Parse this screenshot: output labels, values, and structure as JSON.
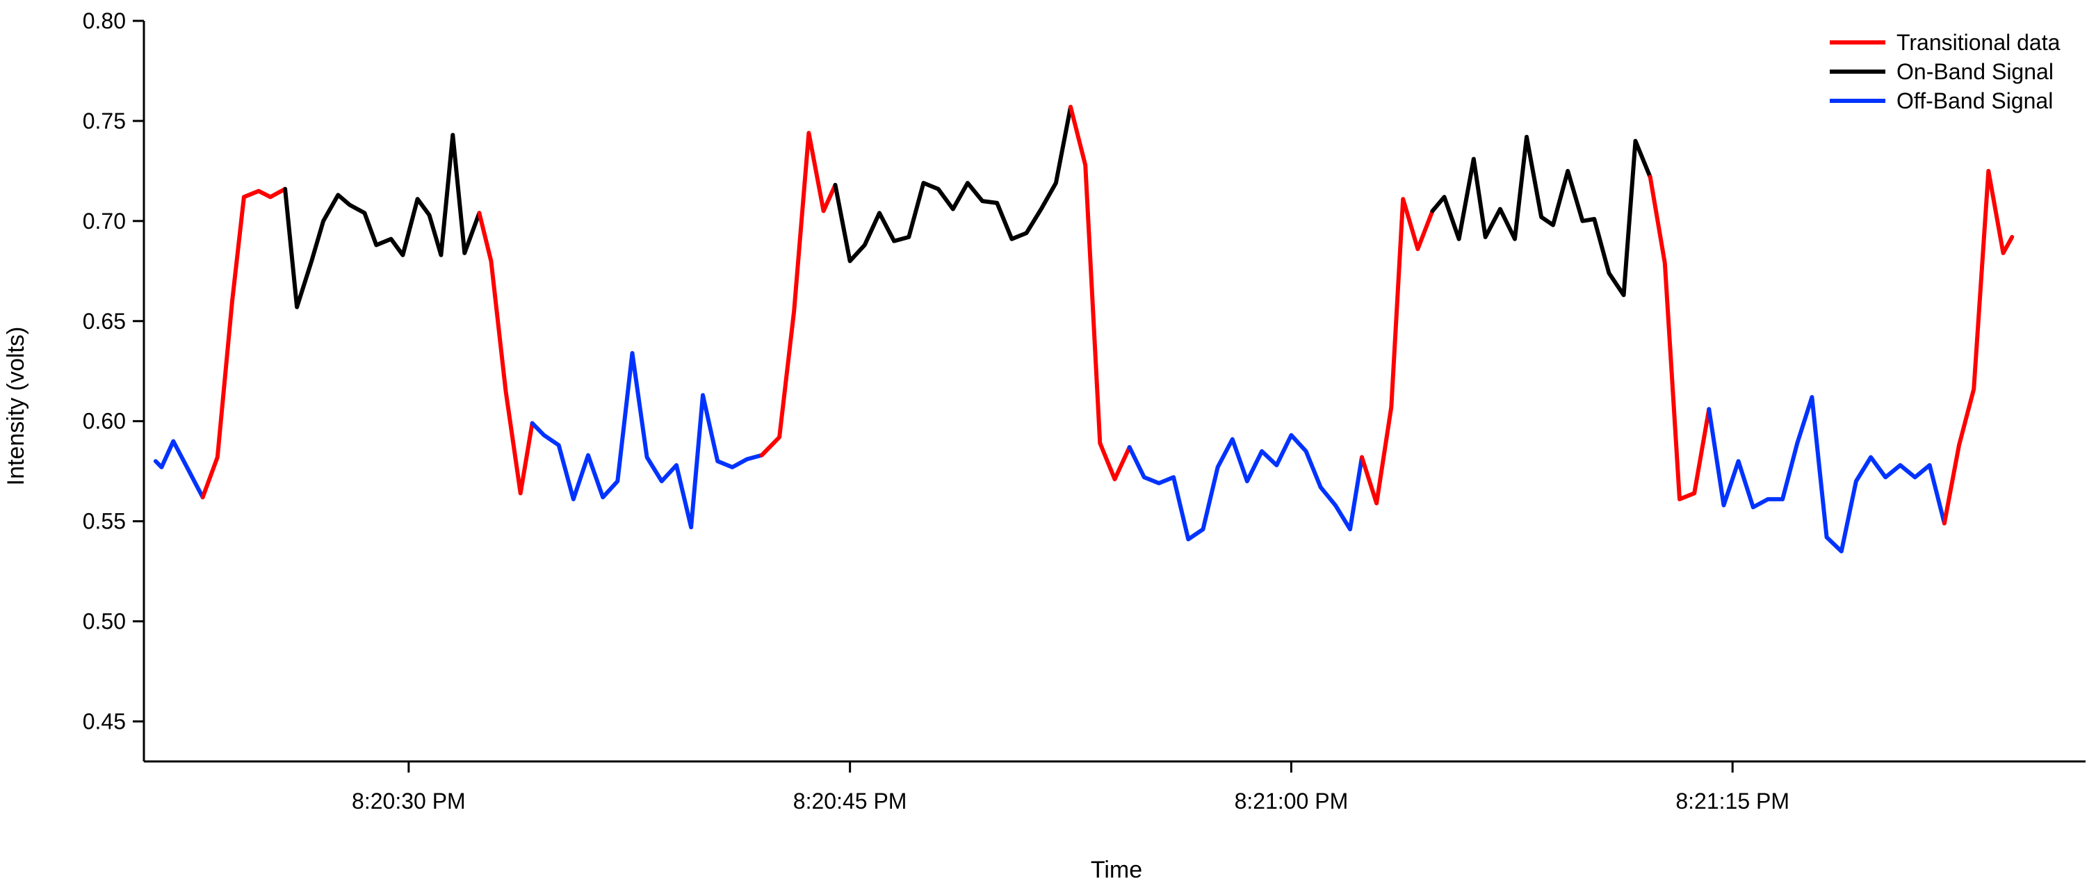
{
  "chart_data": {
    "type": "line",
    "xlabel": "Time",
    "ylabel": "Intensity (volts)",
    "ylim": [
      0.43,
      0.8
    ],
    "xlim": [
      "8:20:21 PM",
      "8:21:27 PM"
    ],
    "y_ticks": [
      "0.45",
      "0.50",
      "0.55",
      "0.60",
      "0.65",
      "0.70",
      "0.75",
      "0.80"
    ],
    "x_ticks": [
      {
        "t": "8:20:30 PM",
        "label": "8:20:30 PM"
      },
      {
        "t": "8:20:45 PM",
        "label": "8:20:45 PM"
      },
      {
        "t": "8:21:00 PM",
        "label": "8:21:00 PM"
      },
      {
        "t": "8:21:15 PM",
        "label": "8:21:15 PM"
      }
    ],
    "grid": false,
    "legend_position": "top-right",
    "colors": {
      "Transitional data": "#ff0000",
      "On-Band Signal": "#000000",
      "Off-Band Signal": "#0033ff"
    },
    "legend": [
      "Transitional data",
      "On-Band Signal",
      "Off-Band Signal"
    ],
    "segments": [
      {
        "series": "Off-Band Signal",
        "points": [
          [
            "8:20:21.4 PM",
            0.58
          ],
          [
            "8:20:21.6 PM",
            0.577
          ],
          [
            "8:20:22.0 PM",
            0.59
          ],
          [
            "8:20:22.5 PM",
            0.576
          ],
          [
            "8:20:23.0 PM",
            0.562
          ]
        ]
      },
      {
        "series": "Transitional data",
        "points": [
          [
            "8:20:23.0 PM",
            0.562
          ],
          [
            "8:20:23.5 PM",
            0.582
          ],
          [
            "8:20:24.0 PM",
            0.66
          ],
          [
            "8:20:24.4 PM",
            0.712
          ],
          [
            "8:20:24.9 PM",
            0.715
          ],
          [
            "8:20:25.3 PM",
            0.712
          ],
          [
            "8:20:25.8 PM",
            0.716
          ]
        ]
      },
      {
        "series": "On-Band Signal",
        "points": [
          [
            "8:20:25.8 PM",
            0.716
          ],
          [
            "8:20:26.2 PM",
            0.657
          ],
          [
            "8:20:26.7 PM",
            0.68
          ],
          [
            "8:20:27.1 PM",
            0.7
          ],
          [
            "8:20:27.6 PM",
            0.713
          ],
          [
            "8:20:28.0 PM",
            0.708
          ],
          [
            "8:20:28.5 PM",
            0.704
          ],
          [
            "8:20:28.9 PM",
            0.688
          ],
          [
            "8:20:29.4 PM",
            0.691
          ],
          [
            "8:20:29.8 PM",
            0.683
          ],
          [
            "8:20:30.3 PM",
            0.711
          ],
          [
            "8:20:30.7 PM",
            0.703
          ],
          [
            "8:20:31.1 PM",
            0.683
          ],
          [
            "8:20:31.5 PM",
            0.743
          ],
          [
            "8:20:31.9 PM",
            0.684
          ],
          [
            "8:20:32.4 PM",
            0.704
          ]
        ]
      },
      {
        "series": "Transitional data",
        "points": [
          [
            "8:20:32.4 PM",
            0.704
          ],
          [
            "8:20:32.8 PM",
            0.68
          ],
          [
            "8:20:33.3 PM",
            0.615
          ],
          [
            "8:20:33.8 PM",
            0.564
          ],
          [
            "8:20:34.2 PM",
            0.599
          ]
        ]
      },
      {
        "series": "Off-Band Signal",
        "points": [
          [
            "8:20:34.2 PM",
            0.599
          ],
          [
            "8:20:34.6 PM",
            0.593
          ],
          [
            "8:20:35.1 PM",
            0.588
          ],
          [
            "8:20:35.6 PM",
            0.561
          ],
          [
            "8:20:36.1 PM",
            0.583
          ],
          [
            "8:20:36.6 PM",
            0.562
          ],
          [
            "8:20:37.1 PM",
            0.57
          ],
          [
            "8:20:37.6 PM",
            0.634
          ],
          [
            "8:20:38.1 PM",
            0.582
          ],
          [
            "8:20:38.6 PM",
            0.57
          ],
          [
            "8:20:39.1 PM",
            0.578
          ],
          [
            "8:20:39.6 PM",
            0.547
          ],
          [
            "8:20:40.0 PM",
            0.613
          ],
          [
            "8:20:40.5 PM",
            0.58
          ],
          [
            "8:20:41.0 PM",
            0.577
          ],
          [
            "8:20:41.5 PM",
            0.581
          ],
          [
            "8:20:42.0 PM",
            0.583
          ]
        ]
      },
      {
        "series": "Transitional data",
        "points": [
          [
            "8:20:42.0 PM",
            0.583
          ],
          [
            "8:20:42.6 PM",
            0.592
          ],
          [
            "8:20:43.1 PM",
            0.655
          ],
          [
            "8:20:43.6 PM",
            0.744
          ],
          [
            "8:20:44.1 PM",
            0.705
          ],
          [
            "8:20:44.5 PM",
            0.718
          ]
        ]
      },
      {
        "series": "On-Band Signal",
        "points": [
          [
            "8:20:44.5 PM",
            0.718
          ],
          [
            "8:20:45.0 PM",
            0.68
          ],
          [
            "8:20:45.5 PM",
            0.688
          ],
          [
            "8:20:46.0 PM",
            0.704
          ],
          [
            "8:20:46.5 PM",
            0.69
          ],
          [
            "8:20:47.0 PM",
            0.692
          ],
          [
            "8:20:47.5 PM",
            0.719
          ],
          [
            "8:20:48.0 PM",
            0.716
          ],
          [
            "8:20:48.5 PM",
            0.706
          ],
          [
            "8:20:49.0 PM",
            0.719
          ],
          [
            "8:20:49.5 PM",
            0.71
          ],
          [
            "8:20:50.0 PM",
            0.709
          ],
          [
            "8:20:50.5 PM",
            0.691
          ],
          [
            "8:20:51.0 PM",
            0.694
          ],
          [
            "8:20:51.5 PM",
            0.706
          ],
          [
            "8:20:52.0 PM",
            0.719
          ],
          [
            "8:20:52.5 PM",
            0.757
          ]
        ]
      },
      {
        "series": "Transitional data",
        "points": [
          [
            "8:20:52.5 PM",
            0.757
          ],
          [
            "8:20:53.0 PM",
            0.728
          ],
          [
            "8:20:53.5 PM",
            0.589
          ],
          [
            "8:20:54.0 PM",
            0.571
          ],
          [
            "8:20:54.5 PM",
            0.587
          ]
        ]
      },
      {
        "series": "Off-Band Signal",
        "points": [
          [
            "8:20:54.5 PM",
            0.587
          ],
          [
            "8:20:55.0 PM",
            0.572
          ],
          [
            "8:20:55.5 PM",
            0.569
          ],
          [
            "8:20:56.0 PM",
            0.572
          ],
          [
            "8:20:56.5 PM",
            0.541
          ],
          [
            "8:20:57.0 PM",
            0.546
          ],
          [
            "8:20:57.5 PM",
            0.577
          ],
          [
            "8:20:58.0 PM",
            0.591
          ],
          [
            "8:20:58.5 PM",
            0.57
          ],
          [
            "8:20:59.0 PM",
            0.585
          ],
          [
            "8:20:59.5 PM",
            0.578
          ],
          [
            "8:21:00.0 PM",
            0.593
          ],
          [
            "8:21:00.5 PM",
            0.585
          ],
          [
            "8:21:01.0 PM",
            0.567
          ],
          [
            "8:21:01.5 PM",
            0.558
          ],
          [
            "8:21:02.0 PM",
            0.546
          ],
          [
            "8:21:02.4 PM",
            0.582
          ]
        ]
      },
      {
        "series": "Transitional data",
        "points": [
          [
            "8:21:02.4 PM",
            0.582
          ],
          [
            "8:21:02.9 PM",
            0.559
          ],
          [
            "8:21:03.4 PM",
            0.607
          ],
          [
            "8:21:03.8 PM",
            0.711
          ],
          [
            "8:21:04.3 PM",
            0.686
          ],
          [
            "8:21:04.8 PM",
            0.705
          ]
        ]
      },
      {
        "series": "On-Band Signal",
        "points": [
          [
            "8:21:04.8 PM",
            0.705
          ],
          [
            "8:21:05.2 PM",
            0.712
          ],
          [
            "8:21:05.7 PM",
            0.691
          ],
          [
            "8:21:06.2 PM",
            0.731
          ],
          [
            "8:21:06.6 PM",
            0.692
          ],
          [
            "8:21:07.1 PM",
            0.706
          ],
          [
            "8:21:07.6 PM",
            0.691
          ],
          [
            "8:21:08.0 PM",
            0.742
          ],
          [
            "8:21:08.5 PM",
            0.702
          ],
          [
            "8:21:08.9 PM",
            0.698
          ],
          [
            "8:21:09.4 PM",
            0.725
          ],
          [
            "8:21:09.9 PM",
            0.7
          ],
          [
            "8:21:10.3 PM",
            0.701
          ],
          [
            "8:21:10.8 PM",
            0.674
          ],
          [
            "8:21:11.3 PM",
            0.663
          ],
          [
            "8:21:11.7 PM",
            0.74
          ],
          [
            "8:21:12.2 PM",
            0.722
          ]
        ]
      },
      {
        "series": "Transitional data",
        "points": [
          [
            "8:21:12.2 PM",
            0.722
          ],
          [
            "8:21:12.7 PM",
            0.679
          ],
          [
            "8:21:13.2 PM",
            0.561
          ],
          [
            "8:21:13.7 PM",
            0.564
          ],
          [
            "8:21:14.2 PM",
            0.606
          ]
        ]
      },
      {
        "series": "Off-Band Signal",
        "points": [
          [
            "8:21:14.2 PM",
            0.606
          ],
          [
            "8:21:14.7 PM",
            0.558
          ],
          [
            "8:21:15.2 PM",
            0.58
          ],
          [
            "8:21:15.7 PM",
            0.557
          ],
          [
            "8:21:16.2 PM",
            0.561
          ],
          [
            "8:21:16.7 PM",
            0.561
          ],
          [
            "8:21:17.2 PM",
            0.589
          ],
          [
            "8:21:17.7 PM",
            0.612
          ],
          [
            "8:21:18.2 PM",
            0.542
          ],
          [
            "8:21:18.7 PM",
            0.535
          ],
          [
            "8:21:19.2 PM",
            0.57
          ],
          [
            "8:21:19.7 PM",
            0.582
          ],
          [
            "8:21:20.2 PM",
            0.572
          ],
          [
            "8:21:20.7 PM",
            0.578
          ],
          [
            "8:21:21.2 PM",
            0.572
          ],
          [
            "8:21:21.7 PM",
            0.578
          ],
          [
            "8:21:22.2 PM",
            0.549
          ]
        ]
      },
      {
        "series": "Transitional data",
        "points": [
          [
            "8:21:22.2 PM",
            0.549
          ],
          [
            "8:21:22.7 PM",
            0.588
          ],
          [
            "8:21:23.2 PM",
            0.616
          ],
          [
            "8:21:23.7 PM",
            0.725
          ],
          [
            "8:21:24.2 PM",
            0.684
          ],
          [
            "8:21:24.5 PM",
            0.692
          ]
        ]
      }
    ]
  }
}
